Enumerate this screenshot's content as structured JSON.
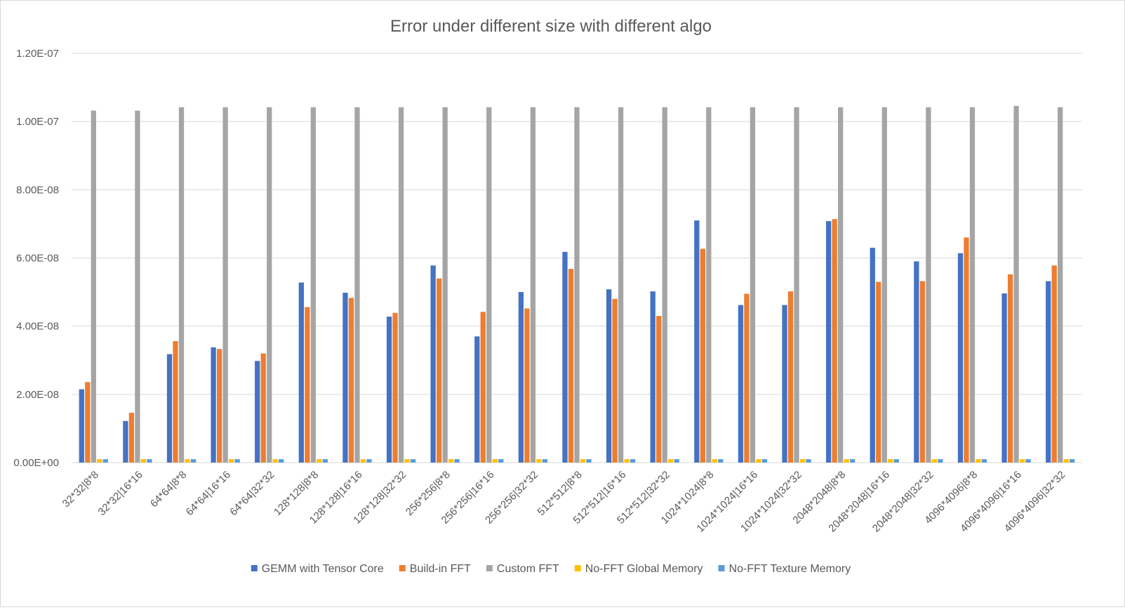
{
  "chart_data": {
    "type": "bar",
    "title": "Error under different size with different algo",
    "xlabel": "",
    "ylabel": "",
    "ylim": [
      0,
      1.2e-07
    ],
    "yticks": [
      {
        "value": 0,
        "label": "0.00E+00"
      },
      {
        "value": 2e-08,
        "label": "2.00E-08"
      },
      {
        "value": 4e-08,
        "label": "4.00E-08"
      },
      {
        "value": 6e-08,
        "label": "6.00E-08"
      },
      {
        "value": 8e-08,
        "label": "8.00E-08"
      },
      {
        "value": 1e-07,
        "label": "1.00E-07"
      },
      {
        "value": 1.2e-07,
        "label": "1.20E-07"
      }
    ],
    "grid": true,
    "legend_position": "bottom",
    "categories": [
      "32*32|8*8",
      "32*32|16*16",
      "64*64|8*8",
      "64*64|16*16",
      "64*64|32*32",
      "128*128|8*8",
      "128*128|16*16",
      "128*128|32*32",
      "256*256|8*8",
      "256*256|16*16",
      "256*256|32*32",
      "512*512|8*8",
      "512*512|16*16",
      "512*512|32*32",
      "1024*1024|8*8",
      "1024*1024|16*16",
      "1024*1024|32*32",
      "2048*2048|8*8",
      "2048*2048|16*16",
      "2048*2048|32*32",
      "4096*4096|8*8",
      "4096*4096|16*16",
      "4096*4096|32*32"
    ],
    "series": [
      {
        "name": "GEMM with Tensor Core",
        "color": "#4472C4",
        "values": [
          2.15e-08,
          1.22e-08,
          3.18e-08,
          3.38e-08,
          2.98e-08,
          5.28e-08,
          4.98e-08,
          4.28e-08,
          5.78e-08,
          3.7e-08,
          5e-08,
          6.18e-08,
          5.08e-08,
          5.02e-08,
          7.1e-08,
          4.62e-08,
          4.62e-08,
          7.08e-08,
          6.3e-08,
          5.9e-08,
          6.14e-08,
          4.96e-08,
          5.32e-08
        ]
      },
      {
        "name": "Build-in FFT",
        "color": "#ED7D31",
        "values": [
          2.36e-08,
          1.46e-08,
          3.56e-08,
          3.33e-08,
          3.2e-08,
          4.56e-08,
          4.83e-08,
          4.39e-08,
          5.4e-08,
          4.42e-08,
          4.52e-08,
          5.68e-08,
          4.8e-08,
          4.3e-08,
          6.27e-08,
          4.95e-08,
          5.02e-08,
          7.14e-08,
          5.3e-08,
          5.32e-08,
          6.6e-08,
          5.52e-08,
          5.78e-08
        ]
      },
      {
        "name": "Custom FFT",
        "color": "#A5A5A5",
        "values": [
          1.032e-07,
          1.032e-07,
          1.042e-07,
          1.042e-07,
          1.042e-07,
          1.042e-07,
          1.042e-07,
          1.042e-07,
          1.042e-07,
          1.042e-07,
          1.042e-07,
          1.042e-07,
          1.042e-07,
          1.042e-07,
          1.042e-07,
          1.042e-07,
          1.042e-07,
          1.042e-07,
          1.042e-07,
          1.042e-07,
          1.042e-07,
          1.046e-07,
          1.042e-07
        ]
      },
      {
        "name": "No-FFT Global Memory",
        "color": "#FFC000",
        "values": [
          1e-09,
          1e-09,
          1e-09,
          1e-09,
          1e-09,
          1e-09,
          1e-09,
          1e-09,
          1e-09,
          1e-09,
          1e-09,
          1e-09,
          1e-09,
          1e-09,
          1e-09,
          1e-09,
          1e-09,
          1e-09,
          1e-09,
          1e-09,
          1e-09,
          1e-09,
          1e-09
        ]
      },
      {
        "name": "No-FFT Texture Memory",
        "color": "#5B9BD5",
        "values": [
          1e-09,
          1e-09,
          1e-09,
          1e-09,
          1e-09,
          1e-09,
          1e-09,
          1e-09,
          1e-09,
          1e-09,
          1e-09,
          1e-09,
          1e-09,
          1e-09,
          1e-09,
          1e-09,
          1e-09,
          1e-09,
          1e-09,
          1e-09,
          1e-09,
          1e-09,
          1e-09
        ]
      }
    ],
    "colors": {
      "gridline": "#D9D9D9",
      "text": "#595959",
      "border": "#D9D9D9"
    }
  }
}
